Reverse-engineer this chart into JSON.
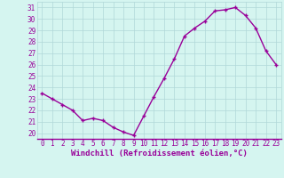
{
  "x": [
    0,
    1,
    2,
    3,
    4,
    5,
    6,
    7,
    8,
    9,
    10,
    11,
    12,
    13,
    14,
    15,
    16,
    17,
    18,
    19,
    20,
    21,
    22,
    23
  ],
  "y": [
    23.5,
    23.0,
    22.5,
    22.0,
    21.1,
    21.3,
    21.1,
    20.5,
    20.1,
    19.8,
    21.5,
    23.2,
    24.8,
    26.5,
    28.5,
    29.2,
    29.8,
    30.7,
    30.8,
    31.0,
    30.3,
    29.2,
    27.2,
    26.0
  ],
  "line_color": "#990099",
  "marker": "+",
  "marker_size": 3,
  "bg_color": "#d5f5f0",
  "grid_color": "#b0d8d8",
  "xlabel": "Windchill (Refroidissement éolien,°C)",
  "xlabel_color": "#990099",
  "tick_color": "#990099",
  "ylim": [
    19.5,
    31.5
  ],
  "xlim": [
    -0.5,
    23.5
  ],
  "yticks": [
    20,
    21,
    22,
    23,
    24,
    25,
    26,
    27,
    28,
    29,
    30,
    31
  ],
  "xticks": [
    0,
    1,
    2,
    3,
    4,
    5,
    6,
    7,
    8,
    9,
    10,
    11,
    12,
    13,
    14,
    15,
    16,
    17,
    18,
    19,
    20,
    21,
    22,
    23
  ],
  "tick_fontsize": 5.5,
  "xlabel_fontsize": 6.5,
  "line_width": 1.0
}
